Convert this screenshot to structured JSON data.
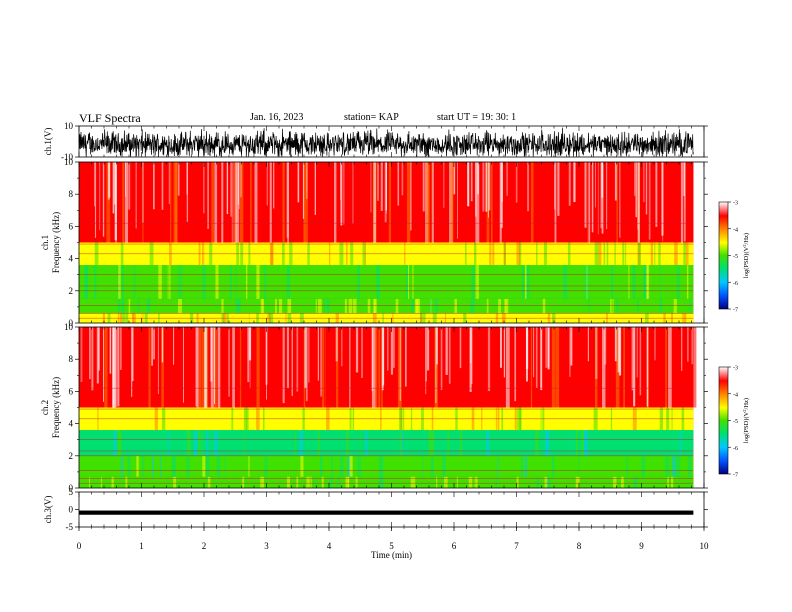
{
  "header": {
    "title": "VLF Spectra",
    "date": "Jan. 16, 2023",
    "station": "station= KAP",
    "start": "start UT =  19: 30: 1"
  },
  "chart_data": [
    {
      "type": "line",
      "panel": "ch1-waveform",
      "ylabel": "ch.1(V)",
      "ylim": [
        -10,
        10
      ],
      "yticks": [
        "10",
        "-10"
      ],
      "description_range": [
        -10,
        10
      ]
    },
    {
      "type": "heatmap",
      "panel": "ch1-spectrogram",
      "ylabel": "ch.1\nFrequency (kHz)",
      "ylim": [
        0,
        10
      ],
      "yticks": [
        "0",
        "2",
        "4",
        "6",
        "8",
        "10"
      ],
      "colorbar": {
        "label": "log(PSD)(V²/Hz)",
        "range": [
          -7,
          -3
        ],
        "ticks": [
          "-3",
          "-4",
          "-5",
          "-6",
          "-7"
        ]
      },
      "bands_khz": [
        {
          "from": 0.0,
          "to": 0.6,
          "log_psd": -4.2
        },
        {
          "from": 0.6,
          "to": 1.5,
          "log_psd": -4.7
        },
        {
          "from": 1.5,
          "to": 3.6,
          "log_psd": -4.9
        },
        {
          "from": 3.6,
          "to": 5.0,
          "log_psd": -4.3
        },
        {
          "from": 5.0,
          "to": 10.0,
          "log_psd": -3.3
        }
      ]
    },
    {
      "type": "heatmap",
      "panel": "ch2-spectrogram",
      "ylabel": "ch.2\nFrequency (kHz)",
      "ylim": [
        0,
        10
      ],
      "yticks": [
        "0",
        "2",
        "4",
        "6",
        "8",
        "10"
      ],
      "colorbar": {
        "label": "log(PSD)(V²/Hz)",
        "range": [
          -7,
          -3
        ],
        "ticks": [
          "-3",
          "-4",
          "-5",
          "-6",
          "-7"
        ]
      },
      "bands_khz": [
        {
          "from": 0.0,
          "to": 0.7,
          "log_psd": -4.6
        },
        {
          "from": 0.7,
          "to": 2.0,
          "log_psd": -5.0
        },
        {
          "from": 2.0,
          "to": 3.6,
          "log_psd": -5.3
        },
        {
          "from": 3.6,
          "to": 5.0,
          "log_psd": -4.4
        },
        {
          "from": 5.0,
          "to": 10.0,
          "log_psd": -3.4
        }
      ]
    },
    {
      "type": "line",
      "panel": "ch3-waveform",
      "ylabel": "ch.3(V)",
      "ylim": [
        -5,
        5
      ],
      "yticks": [
        "5",
        "0",
        "-5"
      ],
      "description_range": [
        -1.5,
        -0.3
      ]
    }
  ],
  "xaxis": {
    "label": "Time (min)",
    "range": [
      0,
      10
    ],
    "data_end": 9.83,
    "ticks": [
      "0",
      "1",
      "2",
      "3",
      "4",
      "5",
      "6",
      "7",
      "8",
      "9",
      "10"
    ]
  },
  "colors": {
    "ink": "#000000",
    "spectro_high": "#e81a1a",
    "spectro_mid": "#ffd700",
    "spectro_low": "#32cd32",
    "spectro_lowest": "#00c8c8"
  }
}
